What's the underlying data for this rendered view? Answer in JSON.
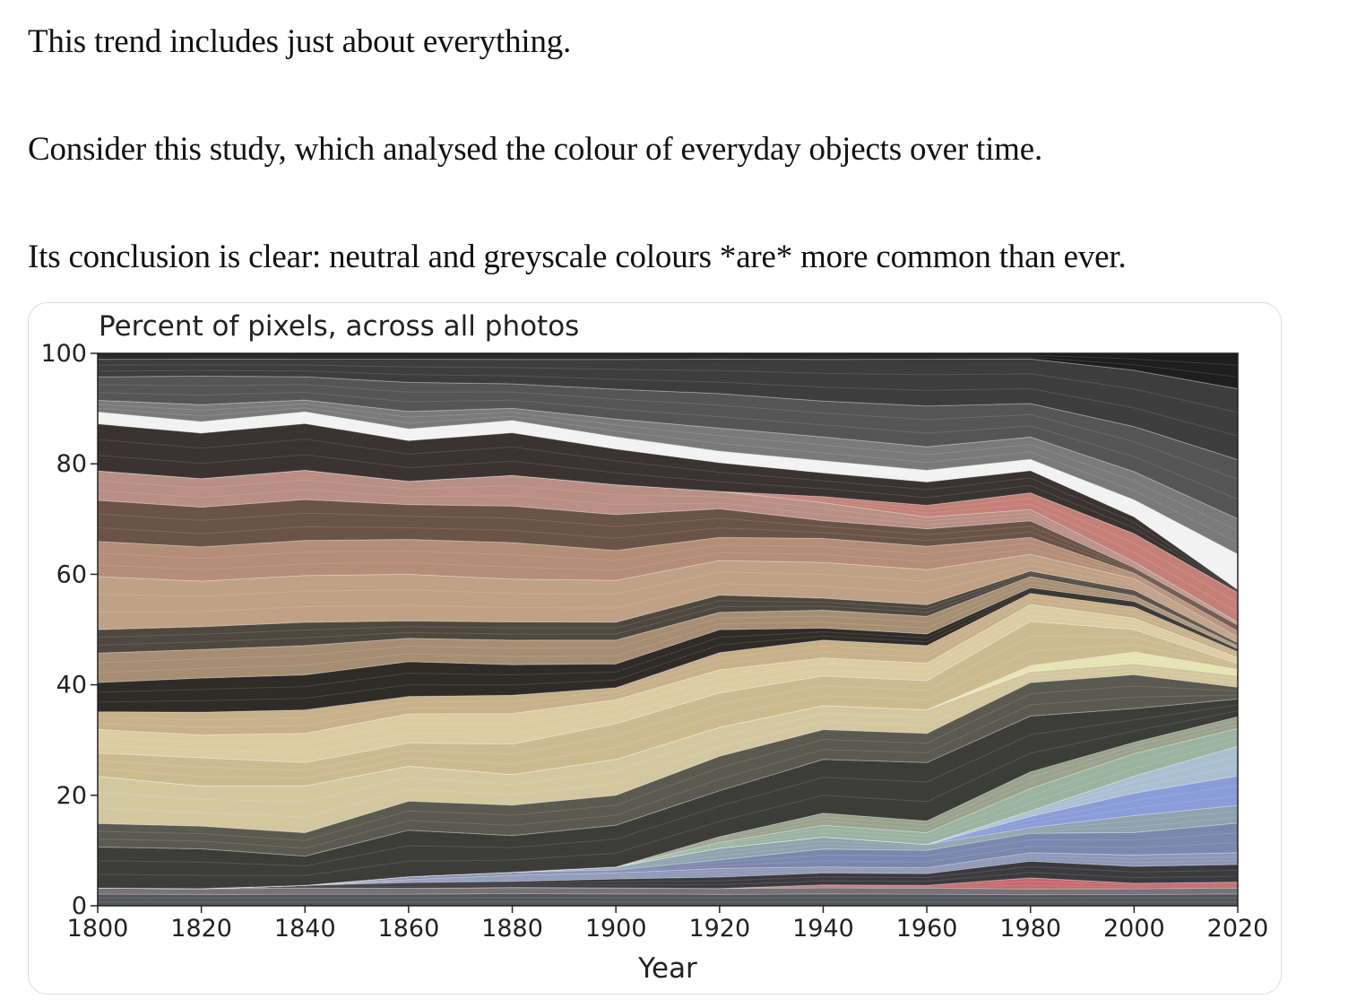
{
  "paragraphs": {
    "p1": "This trend includes just about everything.",
    "p2": "Consider this study, which analysed the colour of everyday objects over time.",
    "p3": "Its conclusion is clear: neutral and greyscale colours *are* more common than ever."
  },
  "chart_data": {
    "type": "area",
    "stacked": true,
    "title": "Percent of pixels, across all photos",
    "xlabel": "Year",
    "ylabel": "",
    "xlim": [
      1800,
      2020
    ],
    "ylim": [
      0,
      100
    ],
    "x": [
      1800,
      1820,
      1840,
      1860,
      1880,
      1900,
      1920,
      1940,
      1960,
      1980,
      2000,
      2020
    ],
    "xticks": [
      1800,
      1820,
      1840,
      1860,
      1880,
      1900,
      1920,
      1940,
      1960,
      1980,
      2000,
      2020
    ],
    "yticks": [
      0,
      20,
      40,
      60,
      80,
      100
    ],
    "grid": false,
    "legend": "none",
    "series": [
      {
        "color": "#55555d",
        "values": [
          2,
          2,
          2,
          2,
          2,
          2,
          2,
          2,
          2,
          2,
          2,
          2
        ]
      },
      {
        "color": "#6e6a70",
        "values": [
          1,
          1,
          1,
          1,
          1,
          1,
          1,
          1,
          1,
          1,
          1,
          1
        ]
      },
      {
        "color": "#c46a6e",
        "values": [
          0,
          0,
          0,
          0,
          0,
          0,
          0,
          0.5,
          0.5,
          2,
          1,
          1
        ]
      },
      {
        "color": "#3b3a3e",
        "values": [
          0,
          0,
          0.5,
          1,
          1,
          1.5,
          2,
          2,
          2,
          3,
          3,
          3
        ]
      },
      {
        "color": "#8e97b8",
        "values": [
          0,
          0,
          0,
          0.5,
          1,
          1,
          1.5,
          1,
          1,
          1.5,
          2,
          2
        ]
      },
      {
        "color": "#7b87ad",
        "values": [
          0,
          0,
          0,
          0.5,
          0.5,
          0.5,
          1.5,
          3,
          3,
          3.5,
          4,
          5
        ]
      },
      {
        "color": "#8fa3ae",
        "values": [
          0,
          0,
          0,
          0,
          0,
          0.5,
          2,
          2,
          1,
          1,
          3,
          3
        ]
      },
      {
        "color": "#8a9cd8",
        "values": [
          0,
          0,
          0,
          0,
          0,
          0,
          0,
          0,
          0,
          2,
          4,
          5
        ]
      },
      {
        "color": "#aac0d2",
        "values": [
          0,
          0,
          0,
          0,
          0,
          0,
          0,
          0,
          0,
          1,
          3,
          5
        ]
      },
      {
        "color": "#9bb3a0",
        "values": [
          0,
          0,
          0,
          0,
          0,
          0,
          1,
          2,
          2,
          4,
          4,
          3
        ]
      },
      {
        "color": "#9aa28e",
        "values": [
          0,
          0,
          0,
          0,
          0,
          0,
          1,
          2,
          2,
          3,
          2,
          2
        ]
      },
      {
        "color": "#3c3c38",
        "values": [
          7,
          7,
          5,
          8,
          6,
          7,
          8,
          9,
          10,
          10,
          6,
          3
        ]
      },
      {
        "color": "#5b5a50",
        "values": [
          4,
          4,
          4,
          5,
          5,
          5,
          6,
          5,
          5,
          6,
          6,
          2
        ]
      },
      {
        "color": "#d3c79f",
        "values": [
          8,
          7,
          8,
          6,
          5,
          6,
          5,
          4,
          4,
          2,
          2,
          2
        ]
      },
      {
        "color": "#e6e3b0",
        "values": [
          0,
          0,
          0,
          0,
          0,
          0,
          0,
          0,
          0,
          1,
          2,
          1
        ]
      },
      {
        "color": "#cdbb90",
        "values": [
          4,
          5,
          4,
          4,
          5,
          6,
          6,
          5,
          5,
          8,
          4,
          1
        ]
      },
      {
        "color": "#dccca1",
        "values": [
          4,
          4,
          5,
          5,
          5,
          4,
          4,
          3,
          3,
          3,
          2,
          1
        ]
      },
      {
        "color": "#c7b08a",
        "values": [
          3,
          4,
          4,
          3,
          3,
          2,
          3,
          3,
          3,
          2,
          2,
          1
        ]
      },
      {
        "color": "#2f2c28",
        "values": [
          5,
          6,
          6,
          6,
          5,
          4,
          4,
          2,
          2,
          1,
          1,
          0.5
        ]
      },
      {
        "color": "#a78e72",
        "values": [
          5,
          5,
          5,
          4,
          4,
          4,
          3,
          3,
          3,
          2,
          1,
          0.5
        ]
      },
      {
        "color": "#4e4840",
        "values": [
          4,
          4,
          4,
          3,
          3,
          3,
          3,
          2,
          2,
          1,
          1,
          0.5
        ]
      },
      {
        "color": "#c0a186",
        "values": [
          9,
          8,
          8,
          8,
          7,
          7,
          6,
          6,
          6,
          3,
          2,
          1
        ]
      },
      {
        "color": "#b48e76",
        "values": [
          6,
          6,
          6,
          6,
          6,
          5,
          4,
          4,
          4,
          3,
          1,
          1
        ]
      },
      {
        "color": "#6b5347",
        "values": [
          7,
          7,
          7,
          6,
          6,
          6,
          5,
          3,
          3,
          3,
          1,
          1
        ]
      },
      {
        "color": "#ba8f86",
        "values": [
          5,
          5,
          5,
          4,
          5,
          5,
          3,
          3,
          2,
          2,
          1,
          0.5
        ]
      },
      {
        "color": "#c48078",
        "values": [
          0,
          0,
          0,
          0,
          0,
          0,
          0,
          1,
          2,
          3,
          5,
          5
        ]
      },
      {
        "color": "#3a3332",
        "values": [
          8,
          8,
          8,
          7,
          7,
          6,
          5,
          4,
          4,
          4,
          3,
          0.5
        ]
      },
      {
        "color": "#f2f2f2",
        "values": [
          2,
          2,
          2,
          2,
          2,
          2,
          2,
          2,
          2,
          2,
          3,
          6
        ]
      },
      {
        "color": "#7a7a7a",
        "values": [
          2,
          3,
          2,
          3,
          2,
          3,
          4,
          4,
          4,
          4,
          5,
          6
        ]
      },
      {
        "color": "#555555",
        "values": [
          4,
          5,
          4,
          5,
          4,
          5,
          6,
          6,
          7,
          6,
          8,
          10
        ]
      },
      {
        "color": "#3d3d3d",
        "values": [
          3,
          3,
          3,
          4,
          4,
          5,
          6,
          7,
          8,
          8,
          10,
          12
        ]
      },
      {
        "color": "#1e1e1e",
        "values": [
          1,
          1,
          1,
          1,
          1,
          1,
          1,
          1,
          1,
          1,
          3,
          6
        ]
      }
    ]
  }
}
